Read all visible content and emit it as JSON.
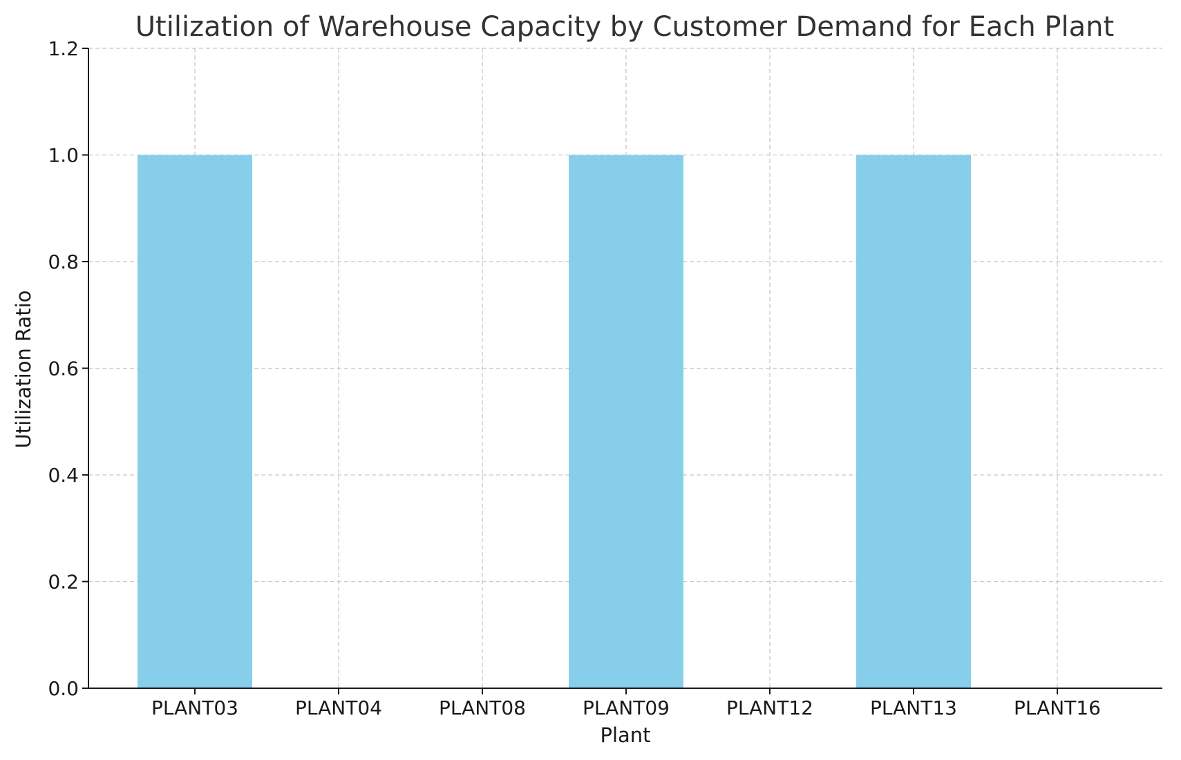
{
  "chart_data": {
    "type": "bar",
    "title": "Utilization of Warehouse Capacity by Customer Demand for Each Plant",
    "xlabel": "Plant",
    "ylabel": "Utilization Ratio",
    "categories": [
      "PLANT03",
      "PLANT04",
      "PLANT08",
      "PLANT09",
      "PLANT12",
      "PLANT13",
      "PLANT16"
    ],
    "values": [
      1.0,
      0.0,
      0.0,
      1.0,
      0.0,
      1.0,
      0.0
    ],
    "ylim": [
      0,
      1.2
    ],
    "yticks": [
      "0.0",
      "0.2",
      "0.4",
      "0.6",
      "0.8",
      "1.0",
      "1.2"
    ],
    "grid": true,
    "bar_color": "#87CEEB"
  }
}
